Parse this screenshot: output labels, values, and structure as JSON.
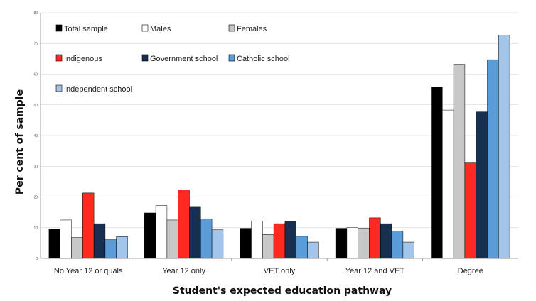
{
  "chart_data": {
    "type": "bar",
    "xlabel": "Student's expected education pathway",
    "ylabel": "Per cent of sample",
    "ylim": [
      0,
      80
    ],
    "yticks": [
      0,
      10,
      20,
      30,
      40,
      50,
      60,
      70,
      80
    ],
    "grid": true,
    "legend_position": "top-left",
    "categories": [
      "No Year 12 or quals",
      "Year 12 only",
      "VET only",
      "Year 12 and VET",
      "Degree"
    ],
    "series": [
      {
        "name": "Total sample",
        "color": "#000000",
        "values": [
          9.5,
          14.8,
          9.8,
          9.8,
          55.8
        ]
      },
      {
        "name": "Males",
        "color": "#ffffff",
        "values": [
          12.5,
          17.2,
          12.2,
          10.0,
          48.3
        ]
      },
      {
        "name": "Females",
        "color": "#c8c8c8",
        "values": [
          6.8,
          12.5,
          7.8,
          9.8,
          63.2
        ]
      },
      {
        "name": "Indigenous",
        "color": "#ff2a1f",
        "values": [
          21.3,
          22.3,
          11.3,
          13.2,
          31.3
        ]
      },
      {
        "name": "Government school",
        "color": "#17304f",
        "values": [
          11.3,
          16.9,
          12.1,
          11.3,
          47.7
        ]
      },
      {
        "name": "Catholic school",
        "color": "#5b9bd8",
        "values": [
          6.1,
          12.9,
          7.2,
          8.9,
          64.7
        ]
      },
      {
        "name": "Independent school",
        "color": "#a3c5ea",
        "values": [
          7.1,
          9.3,
          5.3,
          5.3,
          72.7
        ]
      }
    ]
  }
}
